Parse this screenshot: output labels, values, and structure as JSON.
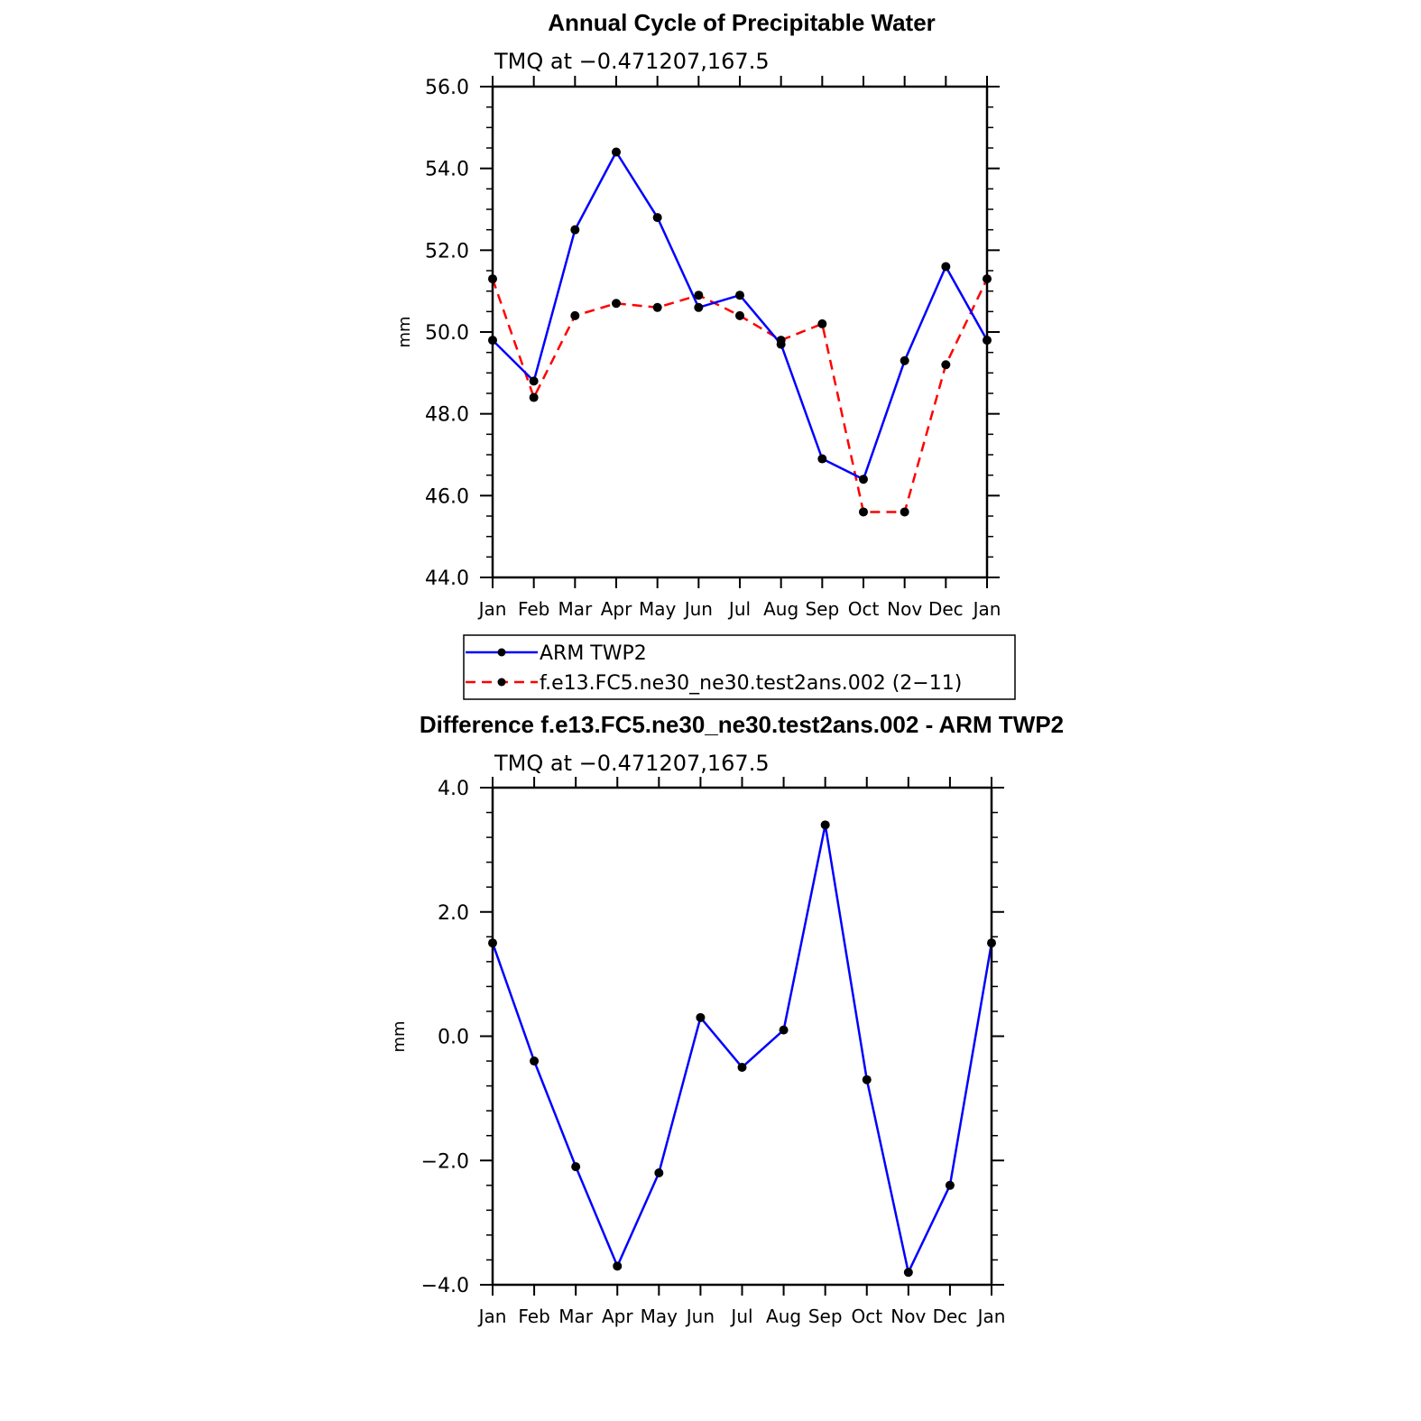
{
  "chart_data": [
    {
      "type": "line",
      "title": "Annual Cycle of Precipitable Water",
      "subtitle": "TMQ at −0.471207,167.5",
      "xlabel": "",
      "ylabel": "mm",
      "categories": [
        "Jan",
        "Feb",
        "Mar",
        "Apr",
        "May",
        "Jun",
        "Jul",
        "Aug",
        "Sep",
        "Oct",
        "Nov",
        "Dec",
        "Jan"
      ],
      "ylim": [
        44.0,
        56.0
      ],
      "yticks": [
        44.0,
        46.0,
        48.0,
        50.0,
        52.0,
        54.0,
        56.0
      ],
      "ytick_labels": [
        "44.0",
        "46.0",
        "48.0",
        "50.0",
        "52.0",
        "54.0",
        "56.0"
      ],
      "series": [
        {
          "name": "ARM TWP2",
          "color": "#0000ff",
          "dash": "solid",
          "values": [
            49.8,
            48.8,
            52.5,
            54.4,
            52.8,
            50.6,
            50.9,
            49.7,
            46.9,
            46.4,
            49.3,
            51.6,
            49.8
          ]
        },
        {
          "name": "f.e13.FC5.ne30_ne30.test2ans.002 (2−11)",
          "color": "#ff0000",
          "dash": "dashed",
          "values": [
            51.3,
            48.4,
            50.4,
            50.7,
            50.6,
            50.9,
            50.4,
            49.8,
            50.2,
            45.6,
            45.6,
            49.2,
            51.3
          ]
        }
      ],
      "legend": {
        "position": "below",
        "entries": [
          "ARM TWP2",
          "f.e13.FC5.ne30_ne30.test2ans.002 (2−11)"
        ]
      }
    },
    {
      "type": "line",
      "title": "Difference f.e13.FC5.ne30_ne30.test2ans.002 - ARM TWP2",
      "subtitle": "TMQ at −0.471207,167.5",
      "xlabel": "",
      "ylabel": "mm",
      "categories": [
        "Jan",
        "Feb",
        "Mar",
        "Apr",
        "May",
        "Jun",
        "Jul",
        "Aug",
        "Sep",
        "Oct",
        "Nov",
        "Dec",
        "Jan"
      ],
      "ylim": [
        -4.0,
        4.0
      ],
      "yticks": [
        -4.0,
        -2.0,
        0.0,
        2.0,
        4.0
      ],
      "ytick_labels": [
        "−4.0",
        "−2.0",
        "0.0",
        "2.0",
        "4.0"
      ],
      "series": [
        {
          "name": "Difference",
          "color": "#0000ff",
          "dash": "solid",
          "values": [
            1.5,
            -0.4,
            -2.1,
            -3.7,
            -2.2,
            0.3,
            -0.5,
            0.1,
            3.4,
            -0.7,
            -3.8,
            -2.4,
            1.5
          ]
        }
      ]
    }
  ]
}
